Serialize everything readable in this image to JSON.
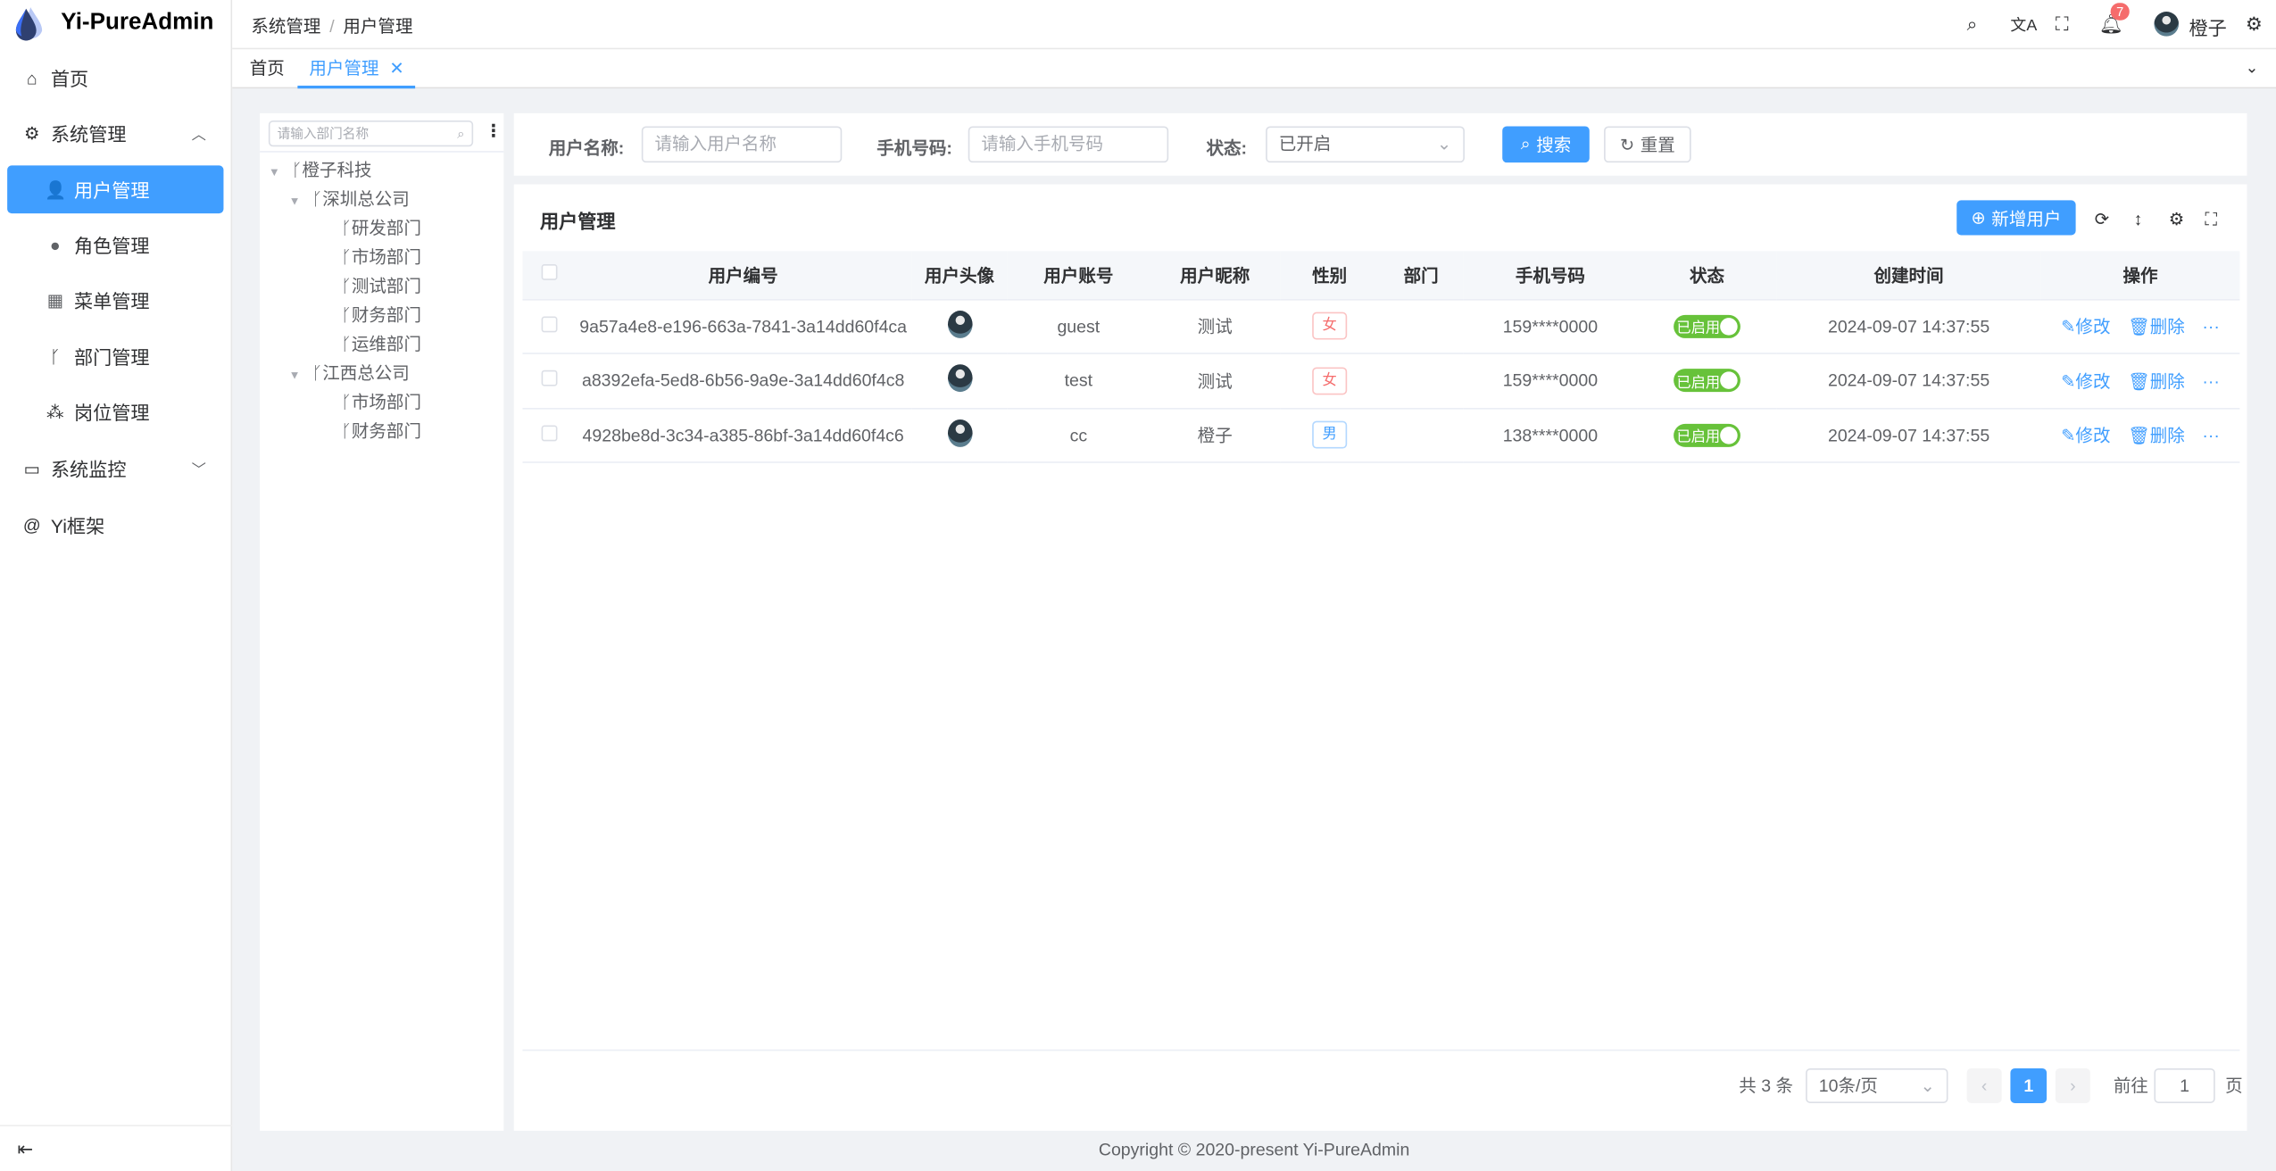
{
  "app": {
    "title": "Yi-PureAdmin"
  },
  "sidebar": {
    "items": [
      {
        "label": "首页",
        "icon": "home-icon"
      },
      {
        "label": "系统管理",
        "icon": "gear-icon",
        "expanded": true
      },
      {
        "label": "用户管理",
        "icon": "user-lock-icon",
        "active": true
      },
      {
        "label": "角色管理",
        "icon": "user-role-icon"
      },
      {
        "label": "菜单管理",
        "icon": "grid-icon"
      },
      {
        "label": "部门管理",
        "icon": "branch-icon"
      },
      {
        "label": "岗位管理",
        "icon": "network-icon"
      },
      {
        "label": "系统监控",
        "icon": "monitor-icon"
      },
      {
        "label": "Yi框架",
        "icon": "at-icon"
      }
    ]
  },
  "header": {
    "breadcrumb": [
      "系统管理",
      "用户管理"
    ],
    "notification_count": "7",
    "username": "橙子"
  },
  "tabs": [
    {
      "label": "首页"
    },
    {
      "label": "用户管理",
      "active": true
    }
  ],
  "tree": {
    "search_placeholder": "请输入部门名称",
    "nodes": [
      {
        "label": "橙子科技",
        "level": 0
      },
      {
        "label": "深圳总公司",
        "level": 1
      },
      {
        "label": "研发部门",
        "level": 2
      },
      {
        "label": "市场部门",
        "level": 2
      },
      {
        "label": "测试部门",
        "level": 2
      },
      {
        "label": "财务部门",
        "level": 2
      },
      {
        "label": "运维部门",
        "level": 2
      },
      {
        "label": "江西总公司",
        "level": 1
      },
      {
        "label": "市场部门",
        "level": 2
      },
      {
        "label": "财务部门",
        "level": 2
      }
    ]
  },
  "search": {
    "username_label": "用户名称:",
    "username_placeholder": "请输入用户名称",
    "phone_label": "手机号码:",
    "phone_placeholder": "请输入手机号码",
    "status_label": "状态:",
    "status_value": "已开启",
    "search_button": "搜索",
    "reset_button": "重置"
  },
  "table": {
    "title": "用户管理",
    "add_button": "新增用户",
    "columns": [
      "用户编号",
      "用户头像",
      "用户账号",
      "用户昵称",
      "性别",
      "部门",
      "手机号码",
      "状态",
      "创建时间",
      "操作"
    ],
    "rows": [
      {
        "id": "9a57a4e8-e196-663a-7841-3a14dd60f4ca",
        "account": "guest",
        "nickname": "测试",
        "gender": "女",
        "dept": "",
        "phone": "159****0000",
        "status": "已启用",
        "created": "2024-09-07 14:37:55"
      },
      {
        "id": "a8392efa-5ed8-6b56-9a9e-3a14dd60f4c8",
        "account": "test",
        "nickname": "测试",
        "gender": "女",
        "dept": "",
        "phone": "159****0000",
        "status": "已启用",
        "created": "2024-09-07 14:37:55"
      },
      {
        "id": "4928be8d-3c34-a385-86bf-3a14dd60f4c6",
        "account": "cc",
        "nickname": "橙子",
        "gender": "男",
        "dept": "",
        "phone": "138****0000",
        "status": "已启用",
        "created": "2024-09-07 14:37:55"
      }
    ],
    "edit_label": "修改",
    "delete_label": "删除"
  },
  "pagination": {
    "total": "共 3 条",
    "page_size": "10条/页",
    "current_page": "1",
    "goto_label": "前往",
    "goto_value": "1",
    "page_suffix": "页"
  },
  "footer": {
    "copyright": "Copyright © 2020-present Yi-PureAdmin"
  },
  "colors": {
    "primary": "#409eff",
    "success": "#67c23a",
    "danger": "#f56c6c"
  }
}
